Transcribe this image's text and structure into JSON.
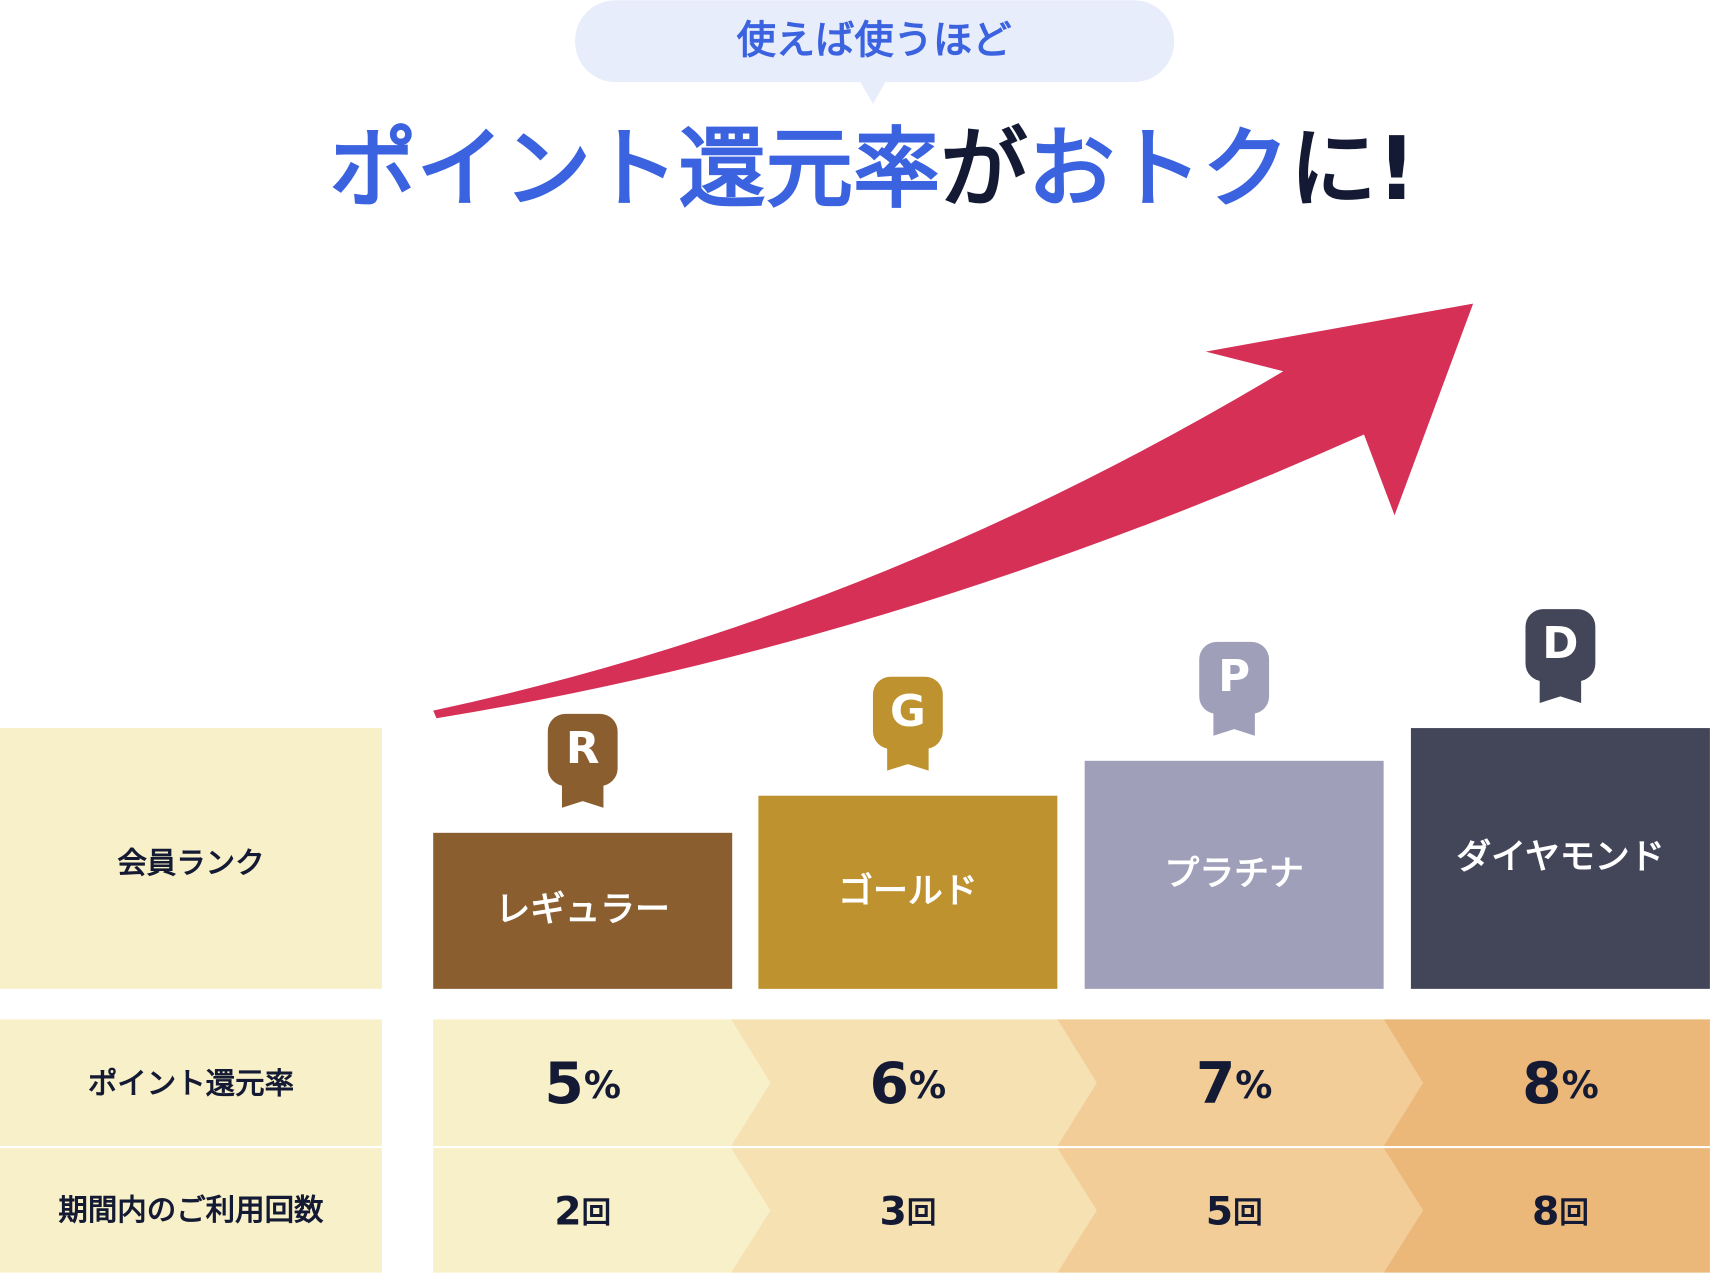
{
  "bubble": "使えば使うほど",
  "title": [
    {
      "text": "ポイント還元率",
      "color": "#3b63e0"
    },
    {
      "text": "が",
      "color": "#141a33"
    },
    {
      "text": "おトク",
      "color": "#3b63e0"
    },
    {
      "text": "に!",
      "color": "#141a33"
    }
  ],
  "row_labels": [
    "会員ランク",
    "ポイント還元率",
    "期間内のご利用回数"
  ],
  "ranks": [
    {
      "letter": "R",
      "name": "レギュラー",
      "rate": "5",
      "rate_unit": "%",
      "count": "2",
      "count_unit": "回",
      "color": "#8b5e30"
    },
    {
      "letter": "G",
      "name": "ゴールド",
      "rate": "6",
      "rate_unit": "%",
      "count": "3",
      "count_unit": "回",
      "color": "#bf9230"
    },
    {
      "letter": "P",
      "name": "プラチナ",
      "rate": "7",
      "rate_unit": "%",
      "count": "5",
      "count_unit": "回",
      "color": "#a09fb9"
    },
    {
      "letter": "D",
      "name": "ダイヤモンド",
      "rate": "8",
      "rate_unit": "%",
      "count": "8",
      "count_unit": "回",
      "color": "#434558"
    }
  ]
}
